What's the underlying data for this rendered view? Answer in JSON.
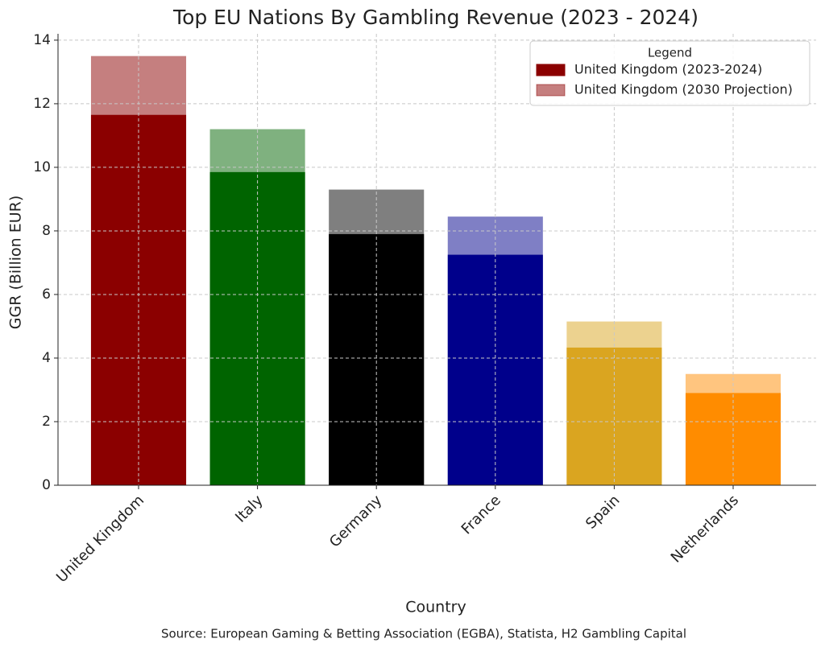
{
  "chart_data": {
    "type": "bar",
    "title": "Top EU Nations By Gambling Revenue (2023 - 2024)",
    "x_label": "Country",
    "y_label": "GGR (Billion EUR)",
    "source": "Source: European Gaming & Betting Association (EGBA), Statista, H2 Gambling Capital",
    "categories": [
      "United Kingdom",
      "Italy",
      "Germany",
      "France",
      "Spain",
      "Netherlands"
    ],
    "colors": [
      "#8b0000",
      "#006400",
      "#000000",
      "#00008b",
      "#daa520",
      "#ff8c00"
    ],
    "series": [
      {
        "name": "United Kingdom (2023-2024)",
        "opacity": 1,
        "values": [
          11.65,
          9.85,
          7.9,
          7.25,
          4.33,
          2.9
        ]
      },
      {
        "name": "United Kingdom (2030 Projection)",
        "opacity": 0.5,
        "values": [
          13.5,
          11.2,
          9.3,
          8.45,
          5.15,
          3.5
        ]
      }
    ],
    "ylim": [
      0,
      14.2
    ],
    "yticks": [
      0,
      2,
      4,
      6,
      8,
      10,
      12,
      14
    ],
    "grid": true,
    "legend": "upper right",
    "legend_title": "Legend"
  }
}
